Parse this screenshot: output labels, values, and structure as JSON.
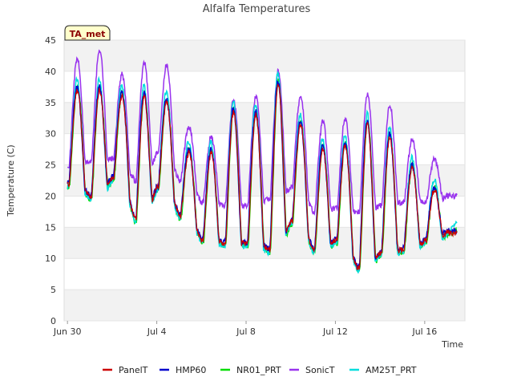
{
  "chart_data": {
    "type": "line",
    "title": "Alfalfa Temperatures",
    "xlabel": "Time",
    "ylabel": "Temperature (C)",
    "badge": "TA_met",
    "ylim": [
      0,
      45
    ],
    "yticks": [
      0,
      5,
      10,
      15,
      20,
      25,
      30,
      35,
      40,
      45
    ],
    "x_start_date": "2023-06-30",
    "x_range_days": [
      -0.15,
      17.8
    ],
    "xticks": [
      {
        "day": 0,
        "label": "Jun 30"
      },
      {
        "day": 4,
        "label": "Jul 4"
      },
      {
        "day": 8,
        "label": "Jul 8"
      },
      {
        "day": 12,
        "label": "Jul 12"
      },
      {
        "day": 16,
        "label": "Jul 16"
      }
    ],
    "grid": "horizontal alternating bands",
    "legend_position": "bottom",
    "daily": {
      "day": [
        0,
        1,
        2,
        3,
        4,
        5,
        6,
        7,
        8,
        9,
        10,
        11,
        12,
        13,
        14,
        15,
        16,
        17
      ],
      "min": [
        21.5,
        19.5,
        22.5,
        16.0,
        21.0,
        16.5,
        12.5,
        12.0,
        12.0,
        11.0,
        15.5,
        11.0,
        12.5,
        8.0,
        10.5,
        11.0,
        12.5,
        13.8
      ],
      "max": [
        37.5,
        37.5,
        36.5,
        36.5,
        35.5,
        27.5,
        27.5,
        34.0,
        33.5,
        38.5,
        32.0,
        28.0,
        28.5,
        32.0,
        30.0,
        25.0,
        21.5,
        14.5
      ],
      "sonic_min": [
        25.0,
        25.5,
        26.0,
        22.5,
        27.0,
        22.5,
        19.0,
        18.5,
        18.5,
        19.5,
        21.5,
        17.5,
        18.0,
        17.5,
        18.5,
        19.0,
        19.0,
        20.0
      ],
      "sonic_max": [
        42.0,
        43.5,
        39.5,
        41.5,
        41.0,
        31.0,
        29.5,
        35.5,
        36.0,
        40.0,
        36.0,
        32.0,
        32.5,
        36.5,
        34.5,
        29.0,
        26.0,
        20.0
      ]
    },
    "series": [
      {
        "name": "PanelT",
        "color": "#cc0000",
        "source": "daily.min/max"
      },
      {
        "name": "HMP60",
        "color": "#0000cc",
        "source": "daily.min/max"
      },
      {
        "name": "NR01_PRT",
        "color": "#00dd00",
        "source": "daily.min/max"
      },
      {
        "name": "SonicT",
        "color": "#9933ee",
        "source": "daily.sonic_min/sonic_max"
      },
      {
        "name": "AM25T_PRT",
        "color": "#00dddd",
        "source": "daily.min/max"
      }
    ]
  }
}
